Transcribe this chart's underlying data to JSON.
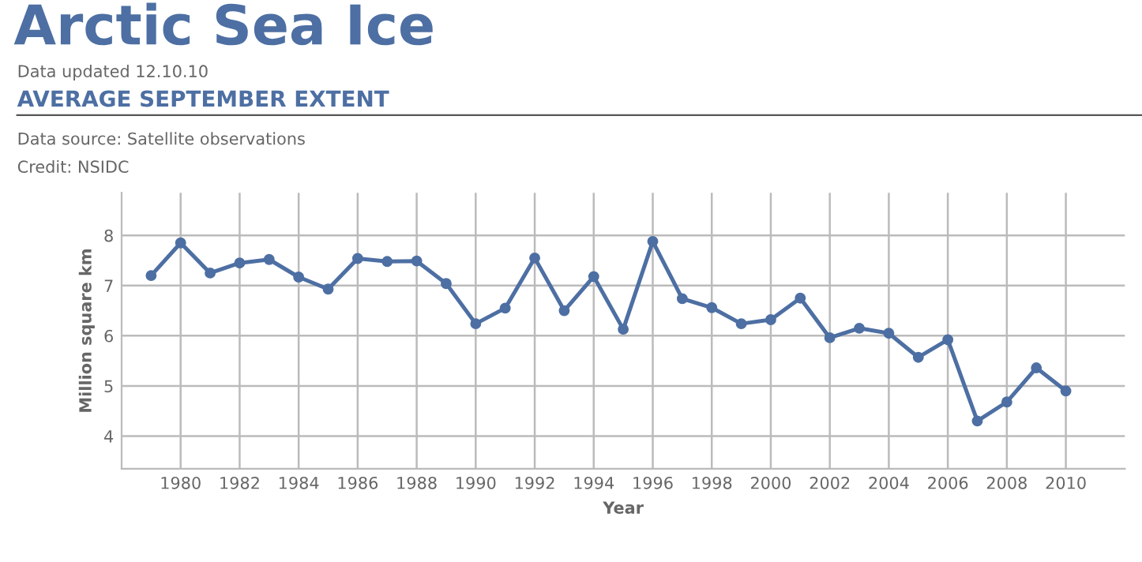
{
  "chart_data": {
    "type": "line",
    "title": "Arctic Sea Ice",
    "subtitle": "AVERAGE SEPTEMBER EXTENT",
    "annotations": [
      "Data updated 12.10.10",
      "Data source: Satellite observations",
      "Credit: NSIDC"
    ],
    "xlabel": "Year",
    "ylabel": "Million square km",
    "x": [
      1979,
      1980,
      1981,
      1982,
      1983,
      1984,
      1985,
      1986,
      1987,
      1988,
      1989,
      1990,
      1991,
      1992,
      1993,
      1994,
      1995,
      1996,
      1997,
      1998,
      1999,
      2000,
      2001,
      2002,
      2003,
      2004,
      2005,
      2006,
      2007,
      2008,
      2009,
      2010
    ],
    "series": [
      {
        "color": "#4d6fa3",
        "values": [
          7.2,
          7.85,
          7.25,
          7.45,
          7.52,
          7.17,
          6.93,
          7.54,
          7.48,
          7.49,
          7.04,
          6.24,
          6.55,
          7.55,
          6.5,
          7.18,
          6.13,
          7.88,
          6.74,
          6.56,
          6.24,
          6.32,
          6.75,
          5.96,
          6.15,
          6.05,
          5.57,
          5.92,
          4.3,
          4.68,
          5.36,
          4.9
        ]
      }
    ],
    "xlim": [
      1978,
      2012
    ],
    "xticks": [
      1980,
      1982,
      1984,
      1986,
      1988,
      1990,
      1992,
      1994,
      1996,
      1998,
      2000,
      2002,
      2004,
      2006,
      2008,
      2010
    ],
    "ylim": [
      3.35,
      8.85
    ],
    "yticks": [
      4,
      5,
      6,
      7,
      8
    ],
    "grid": true,
    "marker": "circle",
    "line_style": "solid",
    "legend": false
  }
}
